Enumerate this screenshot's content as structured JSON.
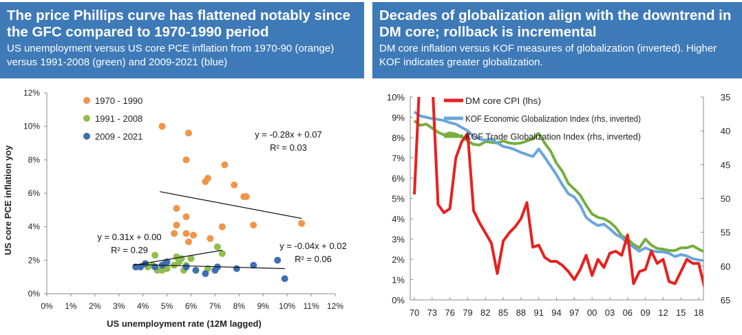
{
  "left": {
    "title": "The price Phillips curve has flattened notably since the GFC compared to 1970-1990 period",
    "subtitle": "US unemployment versus US core PCE inflation from 1970-90 (orange) versus 1991-2008 (green) and 2009-2021 (blue)"
  },
  "right": {
    "title": "Decades of globalization align with the downtrend in DM core; rollback is incremental",
    "subtitle": "DM core inflation versus KOF measures of globalization (inverted). Higher KOF indicates greater  globalization."
  },
  "colors": {
    "orange": "#f0954a",
    "green": "#8fbe4d",
    "blue": "#3e6fb0",
    "red": "#e8201e",
    "lightblue": "#6aa5db",
    "kofgreen": "#76ae3f"
  },
  "chart_data": [
    {
      "type": "scatter",
      "xlabel": "US unemployment rate (12M lagged)",
      "ylabel": "US core PCE inflation yoy",
      "xlim": [
        0,
        12
      ],
      "ylim": [
        0,
        12
      ],
      "xticks": [
        "0%",
        "1%",
        "2%",
        "3%",
        "4%",
        "5%",
        "6%",
        "7%",
        "8%",
        "9%",
        "10%",
        "11%",
        "12%"
      ],
      "yticks": [
        "0%",
        "2%",
        "4%",
        "6%",
        "8%",
        "10%",
        "12%"
      ],
      "legend_position": "top-left",
      "series": [
        {
          "name": "1970 - 1990",
          "color": "#f0954a",
          "points": [
            [
              4.8,
              10.0
            ],
            [
              5.9,
              9.6
            ],
            [
              5.8,
              8.0
            ],
            [
              7.4,
              7.7
            ],
            [
              6.7,
              6.9
            ],
            [
              6.6,
              6.7
            ],
            [
              7.8,
              6.5
            ],
            [
              8.3,
              5.8
            ],
            [
              8.2,
              5.8
            ],
            [
              5.4,
              5.1
            ],
            [
              5.8,
              4.6
            ],
            [
              5.4,
              4.1
            ],
            [
              5.8,
              3.6
            ],
            [
              8.6,
              4.1
            ],
            [
              7.3,
              4.0
            ],
            [
              5.3,
              3.6
            ],
            [
              6.1,
              3.5
            ],
            [
              5.9,
              3.1
            ],
            [
              10.6,
              4.2
            ],
            [
              6.8,
              3.3
            ]
          ]
        },
        {
          "name": "1991 - 2008",
          "color": "#8fbe4d",
          "points": [
            [
              7.3,
              2.4
            ],
            [
              7.1,
              2.8
            ],
            [
              6.0,
              2.1
            ],
            [
              5.4,
              2.2
            ],
            [
              5.6,
              2.1
            ],
            [
              4.5,
              2.3
            ],
            [
              4.2,
              1.6
            ],
            [
              4.4,
              1.7
            ],
            [
              4.6,
              1.4
            ],
            [
              5.0,
              1.5
            ],
            [
              5.3,
              1.7
            ],
            [
              5.5,
              1.9
            ],
            [
              5.8,
              1.7
            ],
            [
              4.9,
              1.8
            ],
            [
              5.7,
              1.4
            ],
            [
              6.7,
              1.5
            ],
            [
              4.8,
              1.4
            ]
          ]
        },
        {
          "name": "2009 - 2021",
          "color": "#3e6fb0",
          "points": [
            [
              3.7,
              1.6
            ],
            [
              3.9,
              1.6
            ],
            [
              4.1,
              1.8
            ],
            [
              4.5,
              1.6
            ],
            [
              4.8,
              1.7
            ],
            [
              5.0,
              1.9
            ],
            [
              5.8,
              1.6
            ],
            [
              6.2,
              1.4
            ],
            [
              6.6,
              1.2
            ],
            [
              7.0,
              1.4
            ],
            [
              7.1,
              1.6
            ],
            [
              7.9,
              1.5
            ],
            [
              8.6,
              1.7
            ],
            [
              9.6,
              2.0
            ],
            [
              9.9,
              0.9
            ]
          ]
        }
      ],
      "trendlines": [
        {
          "series": "1970 - 1990",
          "x": [
            4.7,
            10.6
          ],
          "y": [
            6.1,
            4.5
          ],
          "equation": "y = -0.28x + 0.07",
          "r2": "R² = 0.03"
        },
        {
          "series": "1991 - 2008",
          "x": [
            3.6,
            7.3
          ],
          "y": [
            1.7,
            2.6
          ],
          "equation": "y = 0.31x + 0.00",
          "r2": "R² = 0.29"
        },
        {
          "series": "2009 - 2021",
          "x": [
            3.6,
            9.9
          ],
          "y": [
            1.75,
            1.5
          ],
          "equation": "y = -0.04x + 0.02",
          "r2": "R² = 0.06"
        }
      ]
    },
    {
      "type": "line",
      "ylim_left": [
        0,
        10
      ],
      "ylim_right_inverted": [
        35,
        65
      ],
      "yticks_left": [
        "0%",
        "1%",
        "2%",
        "3%",
        "4%",
        "5%",
        "6%",
        "7%",
        "8%",
        "9%",
        "10%"
      ],
      "yticks_right": [
        "35",
        "40",
        "45",
        "50",
        "55",
        "60",
        "65"
      ],
      "xlim": [
        1970,
        2019.5
      ],
      "xticks": [
        "70",
        "73",
        "76",
        "79",
        "82",
        "85",
        "88",
        "91",
        "94",
        "97",
        "00",
        "03",
        "06",
        "09",
        "12",
        "15",
        "18"
      ],
      "legend_position": "top",
      "series": [
        {
          "name": "DM core CPI (lhs)",
          "color": "#e8201e",
          "axis": "left",
          "x": [
            1970,
            1971,
            1972,
            1973,
            1974,
            1975,
            1976,
            1977,
            1978,
            1979,
            1980,
            1981,
            1982,
            1983,
            1984,
            1985,
            1986,
            1987,
            1988,
            1989,
            1990,
            1991,
            1992,
            1993,
            1994,
            1995,
            1996,
            1997,
            1998,
            1999,
            2000,
            2001,
            2002,
            2003,
            2004,
            2005,
            2006,
            2007,
            2008,
            2009,
            2010,
            2011,
            2012,
            2013,
            2014,
            2015,
            2016,
            2017,
            2018,
            2019
          ],
          "y": [
            5.2,
            11.5,
            10.5,
            11.0,
            4.7,
            4.3,
            4.5,
            7.0,
            7.8,
            8.2,
            4.4,
            3.8,
            3.3,
            2.8,
            1.3,
            2.9,
            3.3,
            3.6,
            4.0,
            4.8,
            2.6,
            2.7,
            2.1,
            1.9,
            1.9,
            1.7,
            1.4,
            1.0,
            1.5,
            2.2,
            1.2,
            2.0,
            1.6,
            2.3,
            2.4,
            2.2,
            3.2,
            0.8,
            1.4,
            1.5,
            2.4,
            1.8,
            2.0,
            0.9,
            0.8,
            1.4,
            2.0,
            1.8,
            1.8,
            0.6
          ]
        },
        {
          "name": "KOF Economic Globalization Index (rhs, inverted)",
          "color": "#6aa5db",
          "axis": "right",
          "x": [
            1970,
            1971,
            1972,
            1973,
            1974,
            1975,
            1976,
            1977,
            1978,
            1979,
            1980,
            1981,
            1982,
            1983,
            1984,
            1985,
            1986,
            1987,
            1988,
            1989,
            1990,
            1991,
            1992,
            1993,
            1994,
            1995,
            1996,
            1997,
            1998,
            1999,
            2000,
            2001,
            2002,
            2003,
            2004,
            2005,
            2006,
            2007,
            2008,
            2009,
            2010,
            2011,
            2012,
            2013,
            2014,
            2015,
            2016,
            2017,
            2018,
            2019
          ],
          "y": [
            37.2,
            37.8,
            38.0,
            38.2,
            38.3,
            38.5,
            38.8,
            39.0,
            39.5,
            40.0,
            40.8,
            41.2,
            41.4,
            41.2,
            41.8,
            42.3,
            42.5,
            42.8,
            43.2,
            43.5,
            43.8,
            42.7,
            43.9,
            45.2,
            46.5,
            48.0,
            49.3,
            49.8,
            51.0,
            52.8,
            53.5,
            54.0,
            53.8,
            54.5,
            55.3,
            55.8,
            56.6,
            57.2,
            57.8,
            57.3,
            57.7,
            57.9,
            57.9,
            58.1,
            58.6,
            58.3,
            58.5,
            58.9,
            59.1,
            59.2
          ]
        },
        {
          "name": "KOF Trade Globalization Index (rhs, inverted)",
          "color": "#76ae3f",
          "axis": "right",
          "x": [
            1970,
            1971,
            1972,
            1973,
            1974,
            1975,
            1976,
            1977,
            1978,
            1979,
            1980,
            1981,
            1982,
            1983,
            1984,
            1985,
            1986,
            1987,
            1988,
            1989,
            1990,
            1991,
            1992,
            1993,
            1994,
            1995,
            1996,
            1997,
            1998,
            1999,
            2000,
            2001,
            2002,
            2003,
            2004,
            2005,
            2006,
            2007,
            2008,
            2009,
            2010,
            2011,
            2012,
            2013,
            2014,
            2015,
            2016,
            2017,
            2018,
            2019
          ],
          "y": [
            38.5,
            39.2,
            39.0,
            39.6,
            40.2,
            40.6,
            40.3,
            40.5,
            40.9,
            41.5,
            42.0,
            42.1,
            41.6,
            41.7,
            41.8,
            41.5,
            41.8,
            41.9,
            41.8,
            41.5,
            41.2,
            40.4,
            41.8,
            43.0,
            44.8,
            46.0,
            47.8,
            48.6,
            49.5,
            51.0,
            52.3,
            52.8,
            53.0,
            53.5,
            54.3,
            55.5,
            56.0,
            56.8,
            57.3,
            56.0,
            56.9,
            57.4,
            57.5,
            57.7,
            57.7,
            57.3,
            57.3,
            57.0,
            57.5,
            57.9
          ]
        }
      ]
    }
  ]
}
